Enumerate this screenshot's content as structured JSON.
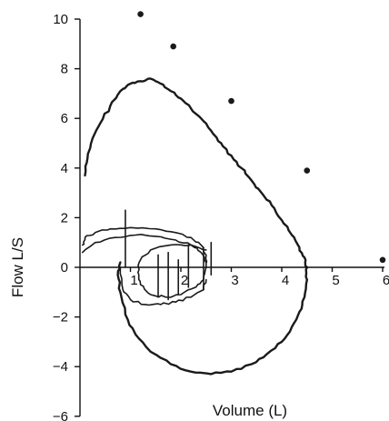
{
  "chart_data": {
    "type": "line",
    "title": "",
    "xlabel": "Volume (L)",
    "ylabel": "Flow L/S",
    "xlim": [
      0,
      6
    ],
    "ylim": [
      -6,
      10
    ],
    "x_ticks": [
      {
        "value": 1,
        "label": "1"
      },
      {
        "value": 2,
        "label": "2"
      },
      {
        "value": 3,
        "label": "3"
      },
      {
        "value": 4,
        "label": "4"
      },
      {
        "value": 5,
        "label": "5"
      },
      {
        "value": 6,
        "label": "6"
      }
    ],
    "y_ticks": [
      {
        "value": 10,
        "label": "10"
      },
      {
        "value": 8,
        "label": "8"
      },
      {
        "value": 6,
        "label": "6"
      },
      {
        "value": 4,
        "label": "4"
      },
      {
        "value": 2,
        "label": "2"
      },
      {
        "value": 0,
        "label": "0"
      },
      {
        "value": -2,
        "label": "−2"
      },
      {
        "value": -4,
        "label": "−4"
      },
      {
        "value": -6,
        "label": "−6"
      }
    ],
    "grid": false,
    "series": [
      {
        "style": "scatter",
        "points": [
          [
            1.2,
            10.2
          ],
          [
            3.0,
            6.7
          ],
          [
            4.5,
            3.9
          ],
          [
            6.0,
            0.3
          ],
          [
            1.85,
            8.9
          ]
        ]
      },
      {
        "style": "line",
        "points": [
          [
            0.1,
            3.7
          ],
          [
            0.15,
            4.4
          ],
          [
            0.25,
            5.2
          ],
          [
            0.4,
            5.8
          ],
          [
            0.6,
            6.5
          ],
          [
            0.8,
            7.1
          ],
          [
            1.0,
            7.4
          ],
          [
            1.2,
            7.5
          ],
          [
            1.4,
            7.6
          ],
          [
            1.6,
            7.4
          ],
          [
            1.8,
            7.1
          ],
          [
            2.0,
            6.8
          ],
          [
            2.2,
            6.4
          ],
          [
            2.4,
            6.0
          ],
          [
            2.6,
            5.5
          ],
          [
            2.8,
            5.0
          ],
          [
            3.0,
            4.5
          ],
          [
            3.2,
            4.0
          ],
          [
            3.4,
            3.5
          ],
          [
            3.6,
            3.0
          ],
          [
            3.8,
            2.5
          ],
          [
            4.0,
            1.9
          ],
          [
            4.2,
            1.3
          ],
          [
            4.35,
            0.8
          ],
          [
            4.45,
            0.4
          ],
          [
            4.5,
            0.0
          ],
          [
            4.5,
            -0.5
          ],
          [
            4.45,
            -1.2
          ],
          [
            4.35,
            -1.8
          ],
          [
            4.2,
            -2.4
          ],
          [
            4.0,
            -3.0
          ],
          [
            3.7,
            -3.5
          ],
          [
            3.4,
            -3.9
          ],
          [
            3.0,
            -4.2
          ],
          [
            2.6,
            -4.3
          ],
          [
            2.2,
            -4.2
          ],
          [
            1.8,
            -3.9
          ],
          [
            1.4,
            -3.4
          ],
          [
            1.1,
            -2.7
          ],
          [
            0.9,
            -1.9
          ],
          [
            0.8,
            -1.0
          ],
          [
            0.75,
            -0.3
          ],
          [
            0.8,
            0.2
          ]
        ]
      },
      {
        "style": "line",
        "points": [
          [
            0.05,
            0.9
          ],
          [
            0.1,
            1.2
          ],
          [
            0.3,
            1.4
          ],
          [
            0.6,
            1.55
          ],
          [
            1.0,
            1.6
          ],
          [
            1.5,
            1.55
          ],
          [
            1.9,
            1.4
          ],
          [
            2.2,
            1.2
          ],
          [
            2.4,
            0.9
          ],
          [
            2.5,
            0.5
          ],
          [
            2.5,
            0.0
          ],
          [
            2.45,
            -0.5
          ],
          [
            2.3,
            -0.8
          ],
          [
            2.0,
            -1.1
          ],
          [
            1.7,
            -1.2
          ],
          [
            1.4,
            -1.1
          ],
          [
            1.2,
            -0.7
          ],
          [
            1.15,
            -0.2
          ],
          [
            1.2,
            0.3
          ],
          [
            1.4,
            0.7
          ],
          [
            1.8,
            0.9
          ],
          [
            2.2,
            0.9
          ],
          [
            2.5,
            0.7
          ]
        ]
      },
      {
        "style": "line",
        "points": [
          [
            0.05,
            0.6
          ],
          [
            0.3,
            1.0
          ],
          [
            0.7,
            1.2
          ],
          [
            1.1,
            1.3
          ],
          [
            1.5,
            1.25
          ],
          [
            1.9,
            1.1
          ],
          [
            2.2,
            0.9
          ],
          [
            2.4,
            0.6
          ],
          [
            2.5,
            0.2
          ]
        ]
      },
      {
        "style": "line",
        "points": [
          [
            0.8,
            0.0
          ],
          [
            0.85,
            -0.9
          ],
          [
            1.0,
            -1.3
          ],
          [
            1.3,
            -1.5
          ],
          [
            1.6,
            -1.5
          ],
          [
            1.9,
            -1.4
          ],
          [
            2.2,
            -1.2
          ],
          [
            2.45,
            -0.9
          ],
          [
            2.5,
            -0.5
          ]
        ]
      }
    ]
  }
}
